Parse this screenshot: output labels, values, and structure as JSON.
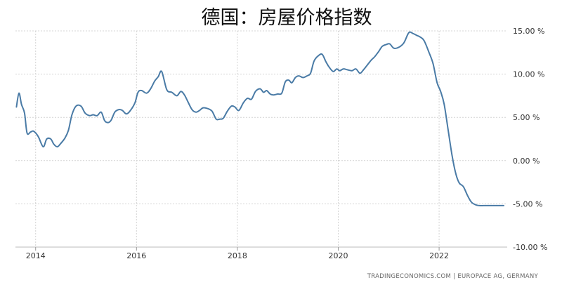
{
  "chart_data": {
    "type": "line",
    "title": "德国：房屋价格指数",
    "source": "TRADINGECONOMICS.COM  |  EUROPACE AG, GERMANY",
    "xlabel": "",
    "ylabel": "",
    "xlim": [
      2013.6,
      2023.35
    ],
    "ylim": [
      -10,
      15
    ],
    "x_ticks": [
      2014,
      2016,
      2018,
      2020,
      2022
    ],
    "x_tick_labels": [
      "2014",
      "2016",
      "2018",
      "2020",
      "2022"
    ],
    "y_ticks": [
      15,
      10,
      5,
      0,
      -5,
      -10
    ],
    "y_tick_labels": [
      "15.00 %",
      "10.00 %",
      "5.00 %",
      "0.00 %",
      "-5.00 %",
      "-10.00 %"
    ],
    "grid": true,
    "line_color": "#4a7ba6",
    "series": [
      {
        "name": "",
        "x": [
          2013.62,
          2013.67,
          2013.72,
          2013.78,
          2013.83,
          2013.9,
          2013.96,
          2014.05,
          2014.15,
          2014.22,
          2014.3,
          2014.36,
          2014.43,
          2014.5,
          2014.58,
          2014.65,
          2014.72,
          2014.8,
          2014.9,
          2014.98,
          2015.07,
          2015.14,
          2015.22,
          2015.3,
          2015.37,
          2015.44,
          2015.5,
          2015.57,
          2015.65,
          2015.72,
          2015.8,
          2015.88,
          2015.97,
          2016.03,
          2016.1,
          2016.2,
          2016.28,
          2016.36,
          2016.43,
          2016.5,
          2016.6,
          2016.7,
          2016.8,
          2016.88,
          2016.95,
          2017.02,
          2017.1,
          2017.18,
          2017.25,
          2017.32,
          2017.42,
          2017.5,
          2017.58,
          2017.65,
          2017.72,
          2017.8,
          2017.88,
          2017.95,
          2018.03,
          2018.12,
          2018.2,
          2018.28,
          2018.36,
          2018.45,
          2018.52,
          2018.58,
          2018.65,
          2018.72,
          2018.8,
          2018.88,
          2018.95,
          2019.02,
          2019.08,
          2019.15,
          2019.22,
          2019.3,
          2019.38,
          2019.45,
          2019.52,
          2019.6,
          2019.68,
          2019.75,
          2019.82,
          2019.9,
          2019.97,
          2020.03,
          2020.1,
          2020.18,
          2020.27,
          2020.35,
          2020.43,
          2020.5,
          2020.57,
          2020.65,
          2020.72,
          2020.8,
          2020.87,
          2020.94,
          2021.02,
          2021.1,
          2021.2,
          2021.3,
          2021.4,
          2021.48,
          2021.55,
          2021.62,
          2021.7,
          2021.8,
          2021.88,
          2021.96,
          2022.03,
          2022.1,
          2022.18,
          2022.26,
          2022.33,
          2022.4,
          2022.48,
          2022.56,
          2022.64,
          2022.72,
          2022.8,
          2022.88,
          2022.96,
          2023.04,
          2023.12,
          2023.2,
          2023.28
        ],
        "values": [
          6.2,
          7.8,
          6.5,
          5.5,
          3.2,
          3.3,
          3.4,
          2.8,
          1.6,
          2.5,
          2.5,
          1.9,
          1.6,
          2.0,
          2.6,
          3.5,
          5.3,
          6.3,
          6.3,
          5.5,
          5.2,
          5.3,
          5.2,
          5.6,
          4.6,
          4.4,
          4.7,
          5.6,
          5.9,
          5.8,
          5.4,
          5.8,
          6.7,
          7.9,
          8.1,
          7.8,
          8.3,
          9.2,
          9.7,
          10.3,
          8.2,
          7.9,
          7.5,
          8.0,
          7.6,
          6.8,
          5.9,
          5.6,
          5.8,
          6.1,
          6.0,
          5.7,
          4.8,
          4.8,
          4.9,
          5.7,
          6.3,
          6.2,
          5.8,
          6.7,
          7.2,
          7.1,
          8.0,
          8.3,
          7.9,
          8.1,
          7.7,
          7.6,
          7.7,
          7.8,
          9.1,
          9.3,
          9.0,
          9.6,
          9.8,
          9.6,
          9.8,
          10.1,
          11.5,
          12.1,
          12.3,
          11.5,
          10.8,
          10.3,
          10.6,
          10.4,
          10.6,
          10.5,
          10.4,
          10.6,
          10.1,
          10.5,
          11.0,
          11.6,
          12.0,
          12.6,
          13.2,
          13.4,
          13.5,
          13.0,
          13.1,
          13.6,
          14.8,
          14.7,
          14.5,
          14.3,
          13.9,
          12.5,
          11.2,
          9.0,
          8.0,
          6.5,
          3.5,
          0.5,
          -1.5,
          -2.6,
          -3.0,
          -4.0,
          -4.8,
          -5.1,
          -5.2,
          -5.2,
          -5.2,
          -5.2,
          -5.2,
          -5.2,
          -5.2
        ]
      }
    ]
  }
}
